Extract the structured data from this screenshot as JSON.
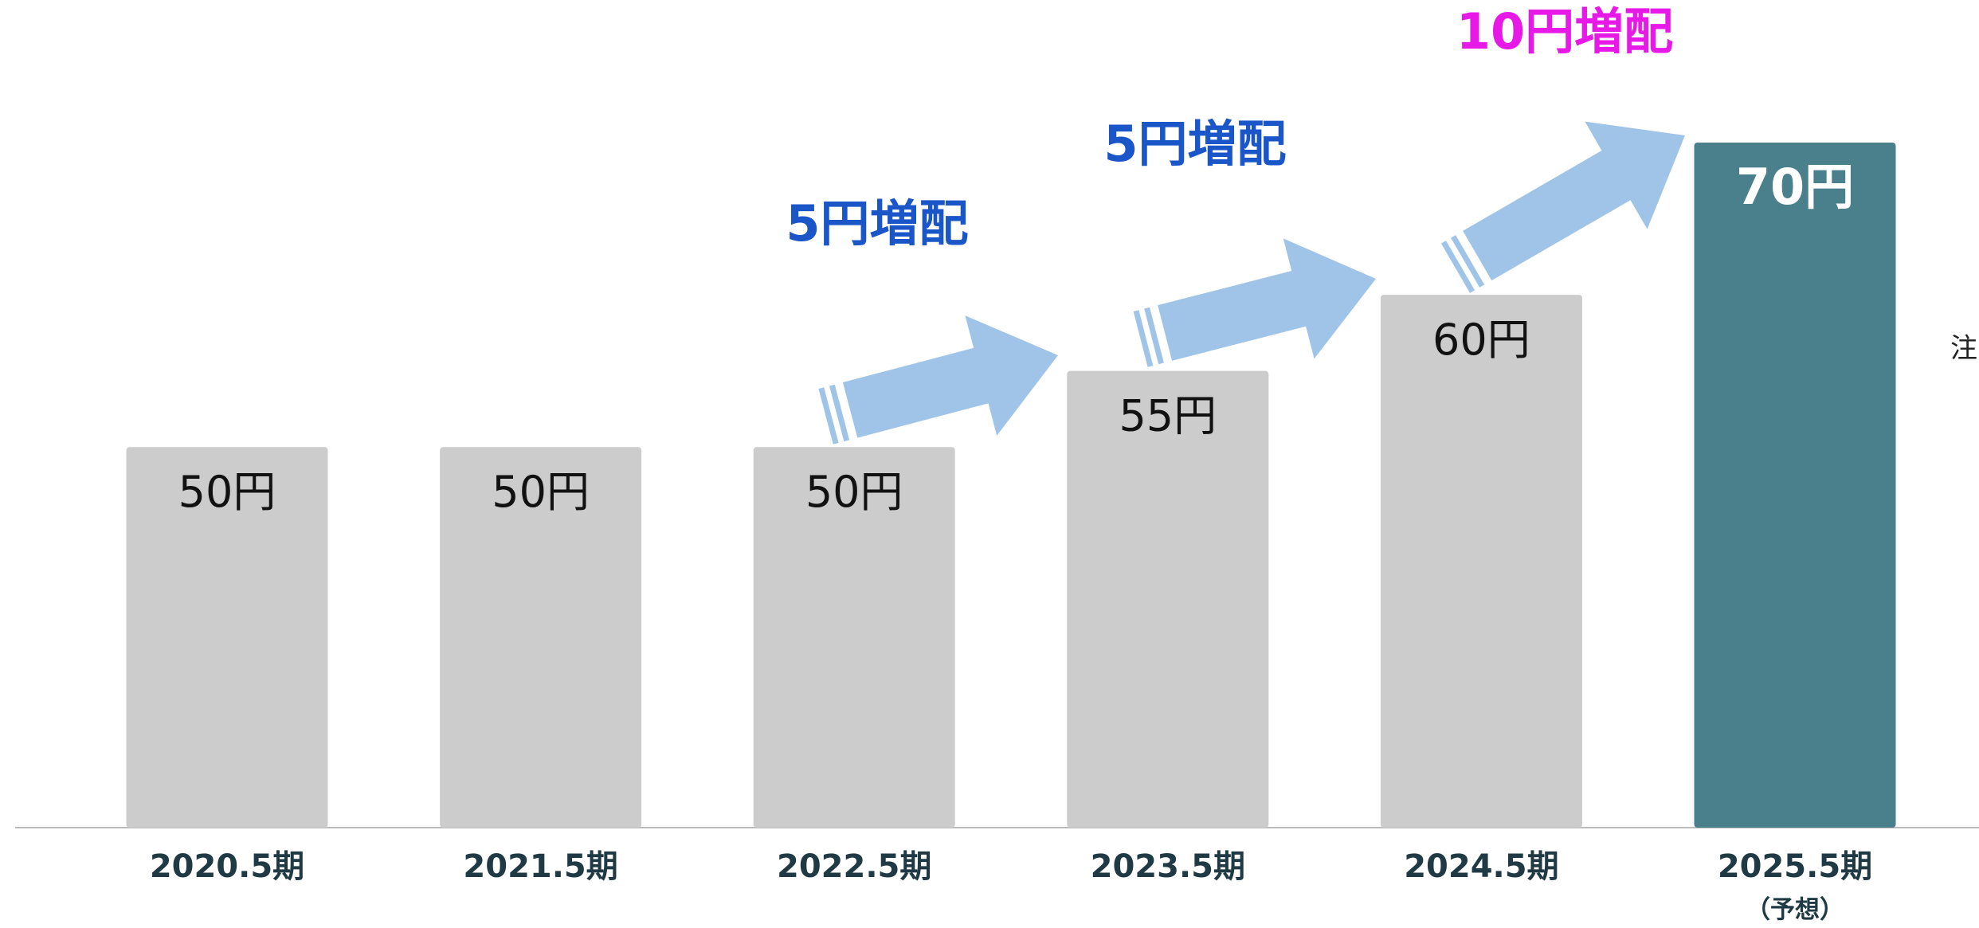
{
  "chart_data": {
    "type": "bar",
    "categories": [
      "2020.5期",
      "2021.5期",
      "2022.5期",
      "2023.5期",
      "2024.5期",
      "2025.5期"
    ],
    "category_sublabels": [
      null,
      null,
      null,
      null,
      null,
      "（予想）"
    ],
    "values": [
      50,
      50,
      50,
      55,
      60,
      70
    ],
    "value_labels": [
      "50円",
      "50円",
      "50円",
      "55円",
      "60円",
      "70円"
    ],
    "colors": [
      "#cccccc",
      "#cccccc",
      "#cccccc",
      "#cccccc",
      "#cccccc",
      "#4a7f8c"
    ],
    "ylim": [
      25,
      70
    ],
    "annotations": [
      {
        "text": "5円増配",
        "color": "#1a56c8"
      },
      {
        "text": "5円増配",
        "color": "#1a56c8"
      },
      {
        "text": "10円増配",
        "color": "#e619e6"
      }
    ],
    "note": "注"
  }
}
